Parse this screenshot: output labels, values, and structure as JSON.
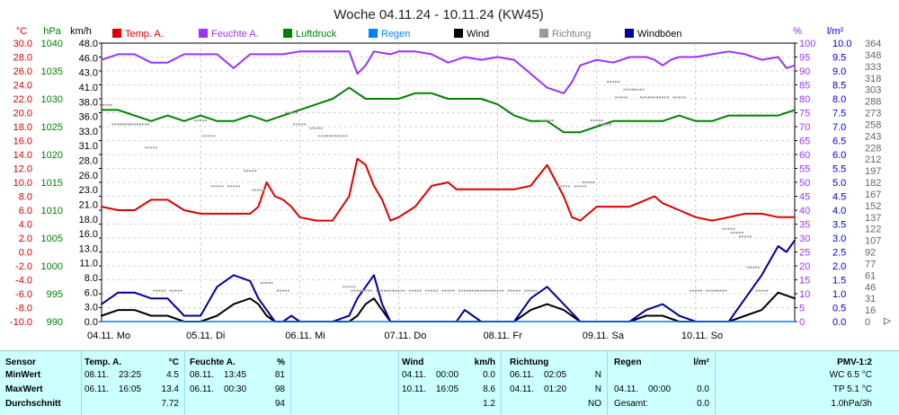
{
  "chart_data": {
    "type": "line",
    "title": "Woche 04.11.24 - 10.11.24 (KW45)",
    "x_labels": [
      "04.11. Mo",
      "05.11. Di",
      "06.11. Mi",
      "07.11. Do",
      "08.11. Fr",
      "09.11. Sa",
      "10.11. So"
    ],
    "x_range_hours": [
      0,
      168
    ],
    "unit_headers": {
      "temp": "°C",
      "pressure": "hPa",
      "wind": "km/h",
      "humidity": "%",
      "rain": "l/m²"
    },
    "axes": {
      "temp": {
        "min": -10,
        "max": 30,
        "ticks": [
          "30.0",
          "28.0",
          "26.0",
          "24.0",
          "22.0",
          "20.0",
          "18.0",
          "16.0",
          "14.0",
          "12.0",
          "10.0",
          "8.0",
          "6.0",
          "4.0",
          "2.0",
          "0.0",
          "-2.0",
          "-4.0",
          "-6.0",
          "-8.0",
          "-10.0"
        ]
      },
      "pressure": {
        "min": 990,
        "max": 1040,
        "ticks": [
          "1040",
          "1035",
          "1030",
          "1025",
          "1020",
          "1015",
          "1010",
          "1005",
          "1000",
          "995",
          "990"
        ]
      },
      "wind": {
        "min": 0,
        "max": 48,
        "ticks": [
          "48.0",
          "46.0",
          "43.0",
          "41.0",
          "38.0",
          "36.0",
          "33.0",
          "31.0",
          "28.0",
          "26.0",
          "23.0",
          "21.0",
          "18.0",
          "16.0",
          "13.0",
          "11.0",
          "8.0",
          "6.0",
          "3.0",
          "0.0"
        ]
      },
      "humidity": {
        "min": 0,
        "max": 100,
        "ticks": [
          "100",
          "95",
          "90",
          "85",
          "80",
          "75",
          "70",
          "65",
          "60",
          "55",
          "50",
          "45",
          "40",
          "35",
          "30",
          "25",
          "20",
          "15",
          "10",
          "5",
          "0"
        ]
      },
      "rain": {
        "min": 0,
        "max": 10,
        "ticks": [
          "10.0",
          "9.5",
          "9.0",
          "8.5",
          "8.0",
          "7.5",
          "7.0",
          "6.5",
          "6.0",
          "5.5",
          "5.0",
          "4.5",
          "4.0",
          "3.5",
          "3.0",
          "2.5",
          "2.0",
          "1.5",
          "1.0",
          "0.5",
          "0.0"
        ]
      },
      "direction": {
        "min": 0,
        "max": 360,
        "ticks": [
          "364",
          "348",
          "333",
          "318",
          "303",
          "288",
          "273",
          "258",
          "243",
          "228",
          "212",
          "197",
          "182",
          "167",
          "152",
          "137",
          "122",
          "107",
          "92",
          "77",
          "61",
          "46",
          "31",
          "16",
          "0"
        ]
      }
    },
    "legend": [
      {
        "name": "Temp. A.",
        "color": "#dd0000",
        "text_color": "#dd0000"
      },
      {
        "name": "Feuchte A.",
        "color": "#9933ff",
        "text_color": "#9933ff"
      },
      {
        "name": "Luftdruck",
        "color": "#008000",
        "text_color": "#008000"
      },
      {
        "name": "Regen",
        "color": "#0080ff",
        "text_color": "#0080ff"
      },
      {
        "name": "Wind",
        "color": "#000000",
        "text_color": "#000000"
      },
      {
        "name": "Richtung",
        "color": "#999999",
        "text_color": "#808080"
      },
      {
        "name": "Windböen",
        "color": "#000099",
        "text_color": "#000000"
      }
    ],
    "series": [
      {
        "name": "Temp. A.",
        "axis": "temp",
        "color": "#dd0000",
        "x": [
          0,
          4,
          8,
          12,
          16,
          20,
          24,
          28,
          32,
          36,
          38,
          40,
          42,
          44,
          46,
          48,
          52,
          56,
          60,
          62,
          64,
          66,
          68,
          70,
          72,
          76,
          80,
          84,
          86,
          88,
          90,
          92,
          94,
          96,
          100,
          104,
          108,
          112,
          114,
          116,
          120,
          124,
          128,
          132,
          134,
          136,
          138,
          140,
          142,
          144,
          148,
          152,
          156,
          160,
          164,
          168
        ],
        "values": [
          6.5,
          6.0,
          6.0,
          7.5,
          7.5,
          6.0,
          5.5,
          5.5,
          5.5,
          5.5,
          6.5,
          10.0,
          8.0,
          7.5,
          6.5,
          5.0,
          4.5,
          4.5,
          8.0,
          13.4,
          12.5,
          9.5,
          7.5,
          4.5,
          5.0,
          6.5,
          9.5,
          10.0,
          9.0,
          9.0,
          9.0,
          9.0,
          9.0,
          9.0,
          9.0,
          9.5,
          12.5,
          8.0,
          5.0,
          4.5,
          6.5,
          6.5,
          6.5,
          7.5,
          8.0,
          7.0,
          6.5,
          6.0,
          5.5,
          5.0,
          4.5,
          5.0,
          5.5,
          5.5,
          5.0,
          5.0
        ]
      },
      {
        "name": "Feuchte A.",
        "axis": "humidity",
        "color": "#9933ff",
        "x": [
          0,
          4,
          8,
          12,
          16,
          20,
          24,
          28,
          32,
          36,
          40,
          44,
          48,
          52,
          56,
          58,
          60,
          62,
          64,
          66,
          70,
          72,
          76,
          80,
          84,
          88,
          92,
          96,
          100,
          104,
          108,
          110,
          112,
          114,
          116,
          120,
          124,
          128,
          132,
          134,
          136,
          138,
          140,
          144,
          148,
          152,
          156,
          160,
          164,
          166,
          168
        ],
        "values": [
          94,
          96,
          96,
          93,
          93,
          96,
          96,
          96,
          91,
          96,
          96,
          96,
          97,
          97,
          97,
          97,
          97,
          89,
          92,
          97,
          96,
          97,
          97,
          96,
          93,
          95,
          94,
          95,
          94,
          89,
          84,
          83,
          82,
          86,
          92,
          94,
          93,
          95,
          95,
          94,
          92,
          94,
          95,
          95,
          96,
          97,
          96,
          94,
          95,
          91,
          92
        ]
      },
      {
        "name": "Luftdruck",
        "axis": "pressure",
        "color": "#008000",
        "x": [
          0,
          4,
          8,
          12,
          16,
          20,
          24,
          28,
          32,
          36,
          40,
          44,
          48,
          52,
          56,
          60,
          64,
          68,
          72,
          76,
          80,
          84,
          88,
          92,
          96,
          100,
          104,
          108,
          112,
          116,
          120,
          124,
          128,
          132,
          136,
          140,
          144,
          148,
          152,
          156,
          160,
          164,
          168
        ],
        "values": [
          1028,
          1028,
          1027,
          1026,
          1027,
          1026,
          1027,
          1026,
          1026,
          1027,
          1026,
          1027,
          1028,
          1029,
          1030,
          1032,
          1030,
          1030,
          1030,
          1031,
          1031,
          1030,
          1030,
          1030,
          1029,
          1027,
          1026,
          1026,
          1024,
          1024,
          1025,
          1026,
          1026,
          1026,
          1026,
          1027,
          1026,
          1026,
          1027,
          1027,
          1027,
          1027,
          1028
        ]
      },
      {
        "name": "Wind",
        "axis": "wind",
        "color": "#000000",
        "x": [
          0,
          4,
          8,
          12,
          16,
          20,
          24,
          28,
          32,
          36,
          38,
          40,
          42,
          44,
          46,
          48,
          52,
          56,
          60,
          62,
          64,
          66,
          68,
          70,
          72,
          76,
          80,
          84,
          86,
          88,
          90,
          92,
          94,
          96,
          100,
          104,
          108,
          112,
          116,
          120,
          124,
          128,
          132,
          136,
          140,
          144,
          148,
          152,
          156,
          160,
          164,
          168
        ],
        "values": [
          1,
          2,
          2,
          1,
          1,
          0,
          0,
          1,
          3,
          4,
          3,
          1,
          0,
          0,
          0,
          0,
          0,
          0,
          0,
          1,
          3,
          4,
          2,
          0,
          0,
          0,
          0,
          0,
          0,
          0,
          0,
          0,
          0,
          0,
          0,
          2,
          3,
          2,
          0,
          0,
          0,
          0,
          1,
          1,
          0,
          0,
          0,
          0,
          1,
          2,
          5,
          4
        ]
      },
      {
        "name": "Windböen",
        "axis": "wind",
        "color": "#000099",
        "x": [
          0,
          4,
          8,
          12,
          16,
          20,
          24,
          28,
          32,
          36,
          38,
          40,
          42,
          44,
          46,
          48,
          52,
          56,
          60,
          62,
          64,
          66,
          68,
          70,
          72,
          76,
          80,
          84,
          86,
          88,
          90,
          92,
          94,
          96,
          100,
          104,
          108,
          112,
          116,
          120,
          124,
          128,
          132,
          136,
          140,
          144,
          148,
          152,
          156,
          160,
          164,
          166,
          168
        ],
        "values": [
          3,
          5,
          5,
          4,
          4,
          1,
          1,
          6,
          8,
          7,
          4,
          2,
          0,
          0,
          1,
          0,
          0,
          0,
          1,
          4,
          6,
          8,
          3,
          0,
          0,
          0,
          0,
          0,
          0,
          2,
          1,
          0,
          0,
          0,
          0,
          4,
          6,
          3,
          0,
          0,
          0,
          0,
          2,
          3,
          1,
          0,
          0,
          0,
          4,
          8,
          13,
          12,
          14
        ]
      },
      {
        "name": "Regen",
        "axis": "rain",
        "color": "#0080ff",
        "x": [
          0,
          168
        ],
        "values": [
          0,
          0
        ]
      }
    ],
    "direction_points": {
      "name": "Richtung",
      "color": "#999999",
      "x": [
        1,
        4,
        6,
        8,
        10,
        12,
        14,
        18,
        24,
        26,
        28,
        32,
        36,
        38,
        40,
        44,
        46,
        48,
        52,
        54,
        56,
        58,
        60,
        62,
        64,
        68,
        70,
        72,
        76,
        80,
        84,
        88,
        90,
        92,
        94,
        96,
        100,
        104,
        108,
        112,
        116,
        118,
        120,
        122,
        124,
        126,
        128,
        130,
        132,
        134,
        136,
        140,
        144,
        148,
        150,
        152,
        154,
        156,
        158,
        160
      ],
      "values": [
        280,
        255,
        255,
        255,
        255,
        225,
        40,
        40,
        260,
        240,
        175,
        175,
        195,
        170,
        50,
        40,
        270,
        255,
        250,
        240,
        240,
        240,
        45,
        40,
        40,
        40,
        40,
        40,
        40,
        40,
        40,
        40,
        40,
        40,
        40,
        40,
        40,
        40,
        260,
        175,
        175,
        180,
        260,
        255,
        310,
        290,
        300,
        300,
        290,
        290,
        290,
        290,
        40,
        40,
        40,
        120,
        115,
        110,
        70,
        40
      ]
    }
  },
  "stats": {
    "sensor": {
      "header": "Sensor",
      "rows": [
        "MinWert",
        "MaxWert",
        "Durchschnitt"
      ]
    },
    "temp": {
      "header": "Temp. A.",
      "unit": "°C",
      "rows": [
        {
          "date": "08.11.",
          "time": "23:25",
          "value": "4.5"
        },
        {
          "date": "06.11.",
          "time": "16:05",
          "value": "13.4"
        },
        {
          "date": "",
          "time": "",
          "value": "7.72"
        }
      ]
    },
    "humidity": {
      "header": "Feuchte A.",
      "unit": "%",
      "rows": [
        {
          "date": "08.11.",
          "time": "13:45",
          "value": "81"
        },
        {
          "date": "06.11.",
          "time": "00:30",
          "value": "98"
        },
        {
          "date": "",
          "time": "",
          "value": "94"
        }
      ]
    },
    "wind": {
      "header": "Wind",
      "unit": "km/h",
      "rows": [
        {
          "date": "04.11.",
          "time": "00:00",
          "value": "0.0"
        },
        {
          "date": "10.11.",
          "time": "16:05",
          "value": "8.6"
        },
        {
          "date": "",
          "time": "",
          "value": "1.2"
        }
      ]
    },
    "direction": {
      "header": "Richtung",
      "rows": [
        {
          "date": "06.11.",
          "time": "02:05",
          "value": "N"
        },
        {
          "date": "04.11.",
          "time": "01:20",
          "value": "N"
        },
        {
          "date": "",
          "time": "",
          "value": "NO"
        }
      ]
    },
    "rain": {
      "header": "Regen",
      "unit": "l/m²",
      "rows": [
        {
          "date": "",
          "time": "",
          "value": ""
        },
        {
          "date": "04.11.",
          "time": "00:00",
          "value": "0.0"
        },
        {
          "date": "Gesamt:",
          "time": "",
          "value": "0.0"
        }
      ]
    },
    "pmv": {
      "header": "PMV-1:2",
      "rows": [
        "WC 6.5 °C",
        "TP 5.1 °C",
        "1.0hPa/3h"
      ]
    }
  }
}
